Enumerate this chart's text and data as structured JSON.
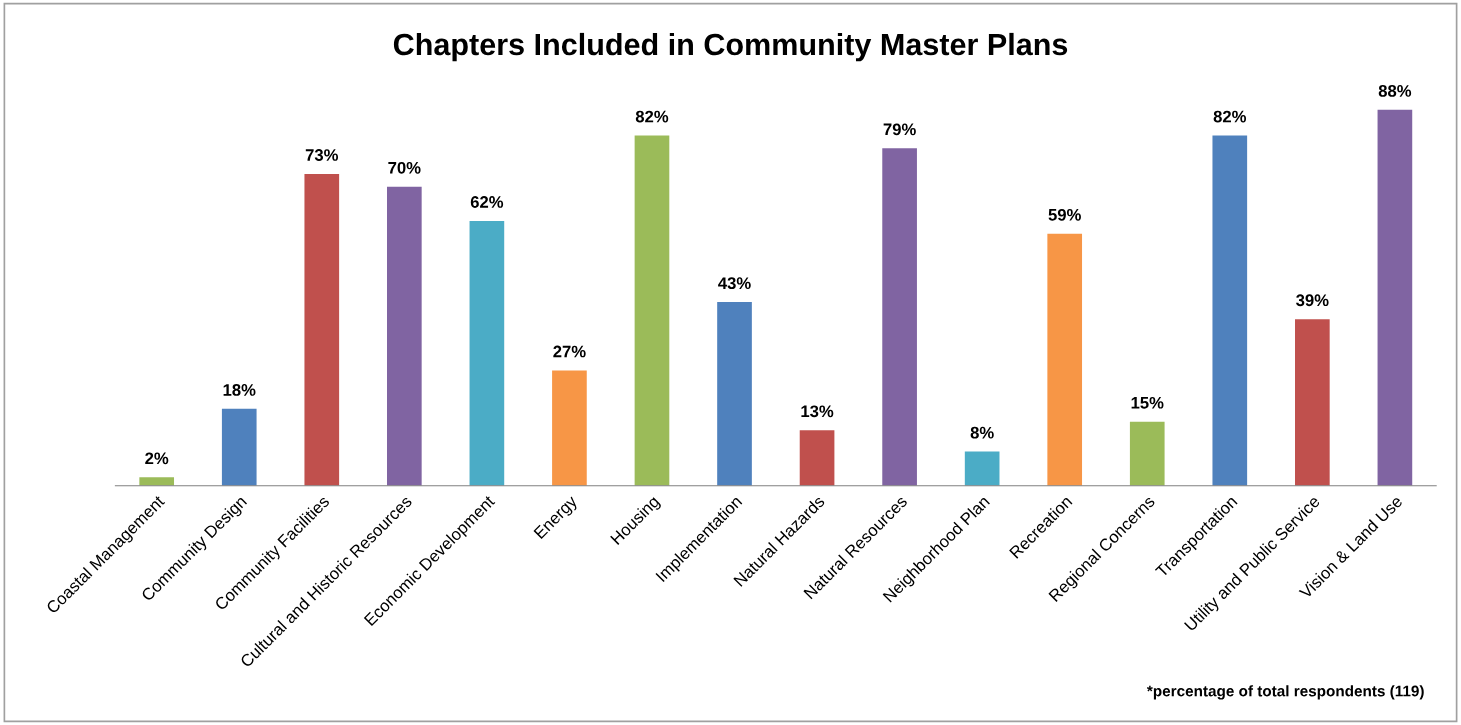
{
  "chart_data": {
    "type": "bar",
    "title": "Chapters Included in Community Master Plans",
    "categories": [
      "Coastal Management",
      "Community Design",
      "Community Facilities",
      "Cultural and Historic Resources",
      "Economic Development",
      "Energy",
      "Housing",
      "Implementation",
      "Natural Hazards",
      "Natural Resources",
      "Neighborhood Plan",
      "Recreation",
      "Regional Concerns",
      "Transportation",
      "Utility and Public Service",
      "Vision & Land Use"
    ],
    "values": [
      2,
      18,
      73,
      70,
      62,
      27,
      82,
      43,
      13,
      79,
      8,
      59,
      15,
      82,
      39,
      88
    ],
    "value_labels": [
      "2%",
      "18%",
      "73%",
      "70%",
      "62%",
      "27%",
      "82%",
      "43%",
      "13%",
      "79%",
      "8%",
      "59%",
      "15%",
      "82%",
      "39%",
      "88%"
    ],
    "colors": [
      "#9bbb59",
      "#4f81bd",
      "#c0504d",
      "#8064a2",
      "#4bacc6",
      "#f79646",
      "#9bbb59",
      "#4f81bd",
      "#c0504d",
      "#8064a2",
      "#4bacc6",
      "#f79646",
      "#9bbb59",
      "#4f81bd",
      "#c0504d",
      "#8064a2"
    ],
    "annotations": [
      "*percentage of total respondents (119)"
    ],
    "grid": false,
    "legend": false
  }
}
